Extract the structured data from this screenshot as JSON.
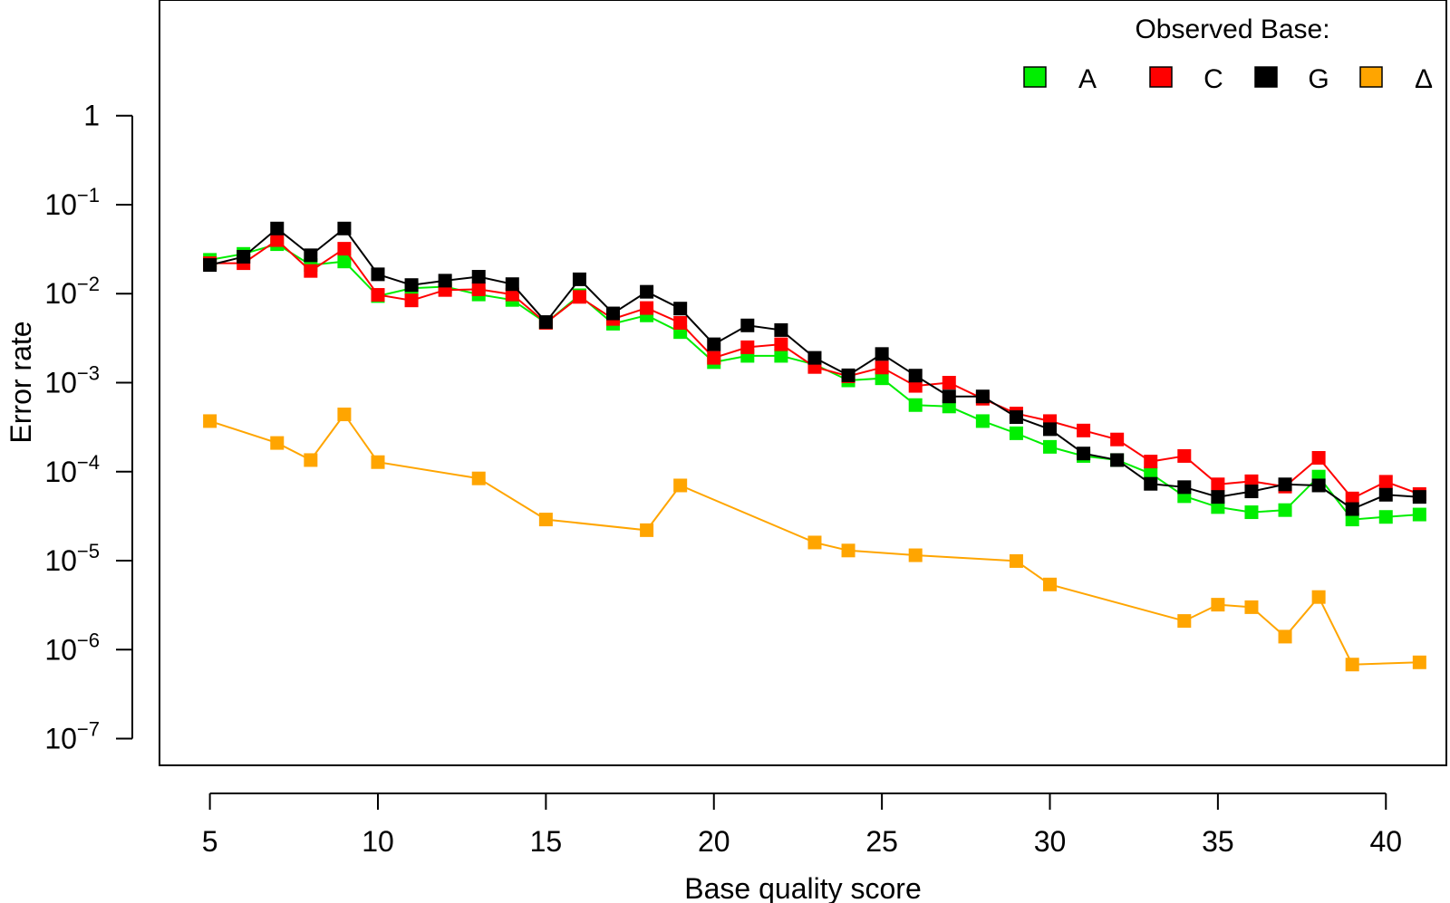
{
  "chart_data": {
    "type": "line",
    "xlabel": "Base quality score",
    "ylabel": "Error rate",
    "xlim": [
      3.5,
      41.8
    ],
    "ylim_log10": [
      -7.3,
      1.3
    ],
    "y_scale": "log10",
    "grid": false,
    "x_ticks": [
      5,
      10,
      15,
      20,
      25,
      30,
      35,
      40
    ],
    "y_ticks": [
      {
        "base": "1",
        "exp": ""
      },
      {
        "base": "10",
        "exp": "−1"
      },
      {
        "base": "10",
        "exp": "−2"
      },
      {
        "base": "10",
        "exp": "−3"
      },
      {
        "base": "10",
        "exp": "−4"
      },
      {
        "base": "10",
        "exp": "−5"
      },
      {
        "base": "10",
        "exp": "−6"
      },
      {
        "base": "10",
        "exp": "−7"
      }
    ],
    "y_tick_values": [
      1,
      0.1,
      0.01,
      0.001,
      0.0001,
      1e-05,
      1e-06,
      1e-07
    ],
    "legend": {
      "title": "Observed Base:",
      "placement": "top-right",
      "labels": [
        "A",
        "C",
        "G",
        "Δ"
      ]
    },
    "series": [
      {
        "name": "A",
        "color": "#00ee00",
        "x": [
          5,
          6,
          7,
          8,
          9,
          10,
          11,
          12,
          13,
          14,
          15,
          16,
          17,
          18,
          19,
          20,
          21,
          22,
          23,
          24,
          25,
          26,
          27,
          28,
          29,
          30,
          31,
          32,
          33,
          34,
          35,
          36,
          37,
          38,
          39,
          40,
          41
        ],
        "y": [
          0.024,
          0.028,
          0.036,
          0.021,
          0.023,
          0.0094,
          0.0115,
          0.012,
          0.0098,
          0.0085,
          0.0047,
          0.0096,
          0.0046,
          0.0057,
          0.0037,
          0.0017,
          0.002,
          0.002,
          0.0016,
          0.00106,
          0.00112,
          0.00056,
          0.00054,
          0.00037,
          0.00027,
          0.00019,
          0.00015,
          0.000135,
          9.5e-05,
          5.3e-05,
          4e-05,
          3.5e-05,
          3.7e-05,
          8.8e-05,
          2.9e-05,
          3.1e-05,
          3.3e-05
        ]
      },
      {
        "name": "C",
        "color": "#ff0000",
        "x": [
          5,
          6,
          7,
          8,
          9,
          10,
          11,
          12,
          13,
          14,
          15,
          16,
          17,
          18,
          19,
          20,
          21,
          22,
          23,
          24,
          25,
          26,
          27,
          28,
          29,
          30,
          31,
          32,
          33,
          34,
          35,
          36,
          37,
          38,
          39,
          40,
          41
        ],
        "y": [
          0.022,
          0.022,
          0.04,
          0.018,
          0.032,
          0.0097,
          0.0084,
          0.011,
          0.0112,
          0.0098,
          0.0047,
          0.0092,
          0.0052,
          0.0069,
          0.0047,
          0.0019,
          0.0025,
          0.0027,
          0.0015,
          0.00118,
          0.00148,
          0.00092,
          0.001,
          0.00066,
          0.00045,
          0.00037,
          0.00029,
          0.00023,
          0.00013,
          0.00015,
          7.2e-05,
          7.8e-05,
          6.8e-05,
          0.000143,
          5e-05,
          7.7e-05,
          5.6e-05
        ]
      },
      {
        "name": "G",
        "color": "#000000",
        "x": [
          5,
          6,
          7,
          8,
          9,
          10,
          11,
          12,
          13,
          14,
          15,
          16,
          17,
          18,
          19,
          20,
          21,
          22,
          23,
          24,
          25,
          26,
          27,
          28,
          29,
          30,
          31,
          32,
          33,
          34,
          35,
          36,
          37,
          38,
          39,
          40,
          41
        ],
        "y": [
          0.021,
          0.026,
          0.054,
          0.027,
          0.054,
          0.0165,
          0.0125,
          0.014,
          0.0155,
          0.0128,
          0.0048,
          0.0145,
          0.006,
          0.0105,
          0.0068,
          0.0027,
          0.0044,
          0.0039,
          0.0019,
          0.00121,
          0.0021,
          0.0012,
          0.0007,
          0.0007,
          0.00041,
          0.0003,
          0.00016,
          0.000135,
          7.3e-05,
          6.7e-05,
          5.2e-05,
          6e-05,
          7.2e-05,
          7e-05,
          3.8e-05,
          5.5e-05,
          5.2e-05
        ]
      },
      {
        "name": "Δ",
        "color": "#ffa500",
        "x": [
          5,
          7,
          8,
          9,
          10,
          13,
          15,
          18,
          19,
          23,
          24,
          26,
          29,
          30,
          34,
          35,
          36,
          37,
          38,
          39,
          41
        ],
        "y": [
          0.00037,
          0.00021,
          0.000135,
          0.00044,
          0.000128,
          8.4e-05,
          2.9e-05,
          2.2e-05,
          7e-05,
          1.6e-05,
          1.3e-05,
          1.15e-05,
          9.9e-06,
          5.4e-06,
          2.1e-06,
          3.2e-06,
          3e-06,
          1.4e-06,
          3.9e-06,
          6.8e-07,
          7.2e-07
        ]
      }
    ]
  }
}
